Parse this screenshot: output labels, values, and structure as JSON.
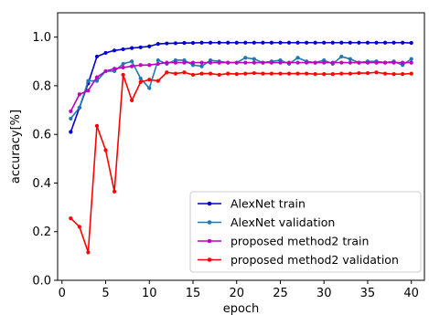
{
  "chart_data": {
    "type": "line",
    "title": "",
    "xlabel": "epoch",
    "ylabel": "accuracy[%]",
    "xlim": [
      -0.5,
      41.5
    ],
    "ylim": [
      0.0,
      1.1
    ],
    "xticks": [
      0,
      5,
      10,
      15,
      20,
      25,
      30,
      35,
      40
    ],
    "yticks": [
      0.0,
      0.2,
      0.4,
      0.6,
      0.8,
      1.0
    ],
    "xtick_labels": [
      "0",
      "5",
      "10",
      "15",
      "20",
      "25",
      "30",
      "35",
      "40"
    ],
    "ytick_labels": [
      "0.0",
      "0.2",
      "0.4",
      "0.6",
      "0.8",
      "1.0"
    ],
    "grid": false,
    "legend_position": "bottom-right",
    "x": [
      1,
      2,
      3,
      4,
      5,
      6,
      7,
      8,
      9,
      10,
      11,
      12,
      13,
      14,
      15,
      16,
      17,
      18,
      19,
      20,
      21,
      22,
      23,
      24,
      25,
      26,
      27,
      28,
      29,
      30,
      31,
      32,
      33,
      34,
      35,
      36,
      37,
      38,
      39,
      40
    ],
    "series": [
      {
        "name": "AlexNet train",
        "color": "#0000cc",
        "values": [
          0.61,
          0.71,
          0.81,
          0.92,
          0.935,
          0.945,
          0.95,
          0.955,
          0.958,
          0.962,
          0.972,
          0.974,
          0.975,
          0.976,
          0.976,
          0.977,
          0.977,
          0.977,
          0.977,
          0.977,
          0.977,
          0.977,
          0.977,
          0.977,
          0.977,
          0.977,
          0.977,
          0.977,
          0.977,
          0.977,
          0.977,
          0.977,
          0.977,
          0.977,
          0.977,
          0.977,
          0.977,
          0.977,
          0.977,
          0.976
        ]
      },
      {
        "name": "AlexNet validation",
        "color": "#1f77b4",
        "values": [
          0.665,
          0.71,
          0.82,
          0.82,
          0.86,
          0.86,
          0.89,
          0.9,
          0.83,
          0.79,
          0.905,
          0.89,
          0.905,
          0.905,
          0.885,
          0.88,
          0.905,
          0.9,
          0.895,
          0.895,
          0.915,
          0.91,
          0.895,
          0.9,
          0.905,
          0.89,
          0.915,
          0.9,
          0.895,
          0.905,
          0.89,
          0.92,
          0.91,
          0.895,
          0.9,
          0.9,
          0.895,
          0.9,
          0.885,
          0.91
        ]
      },
      {
        "name": "proposed method2 train",
        "color": "#bf00bf",
        "values": [
          0.695,
          0.765,
          0.78,
          0.835,
          0.86,
          0.87,
          0.875,
          0.88,
          0.885,
          0.885,
          0.89,
          0.895,
          0.895,
          0.895,
          0.895,
          0.895,
          0.895,
          0.895,
          0.895,
          0.895,
          0.895,
          0.895,
          0.895,
          0.895,
          0.895,
          0.895,
          0.895,
          0.895,
          0.895,
          0.895,
          0.895,
          0.895,
          0.895,
          0.895,
          0.895,
          0.895,
          0.895,
          0.895,
          0.895,
          0.895
        ]
      },
      {
        "name": "proposed method2 validation",
        "color": "#ff0000",
        "values": [
          0.255,
          0.22,
          0.115,
          0.635,
          0.535,
          0.365,
          0.845,
          0.74,
          0.815,
          0.825,
          0.82,
          0.855,
          0.85,
          0.855,
          0.845,
          0.85,
          0.85,
          0.845,
          0.85,
          0.848,
          0.85,
          0.852,
          0.85,
          0.85,
          0.85,
          0.85,
          0.85,
          0.85,
          0.848,
          0.848,
          0.848,
          0.85,
          0.85,
          0.852,
          0.852,
          0.855,
          0.85,
          0.848,
          0.848,
          0.85
        ]
      }
    ]
  }
}
